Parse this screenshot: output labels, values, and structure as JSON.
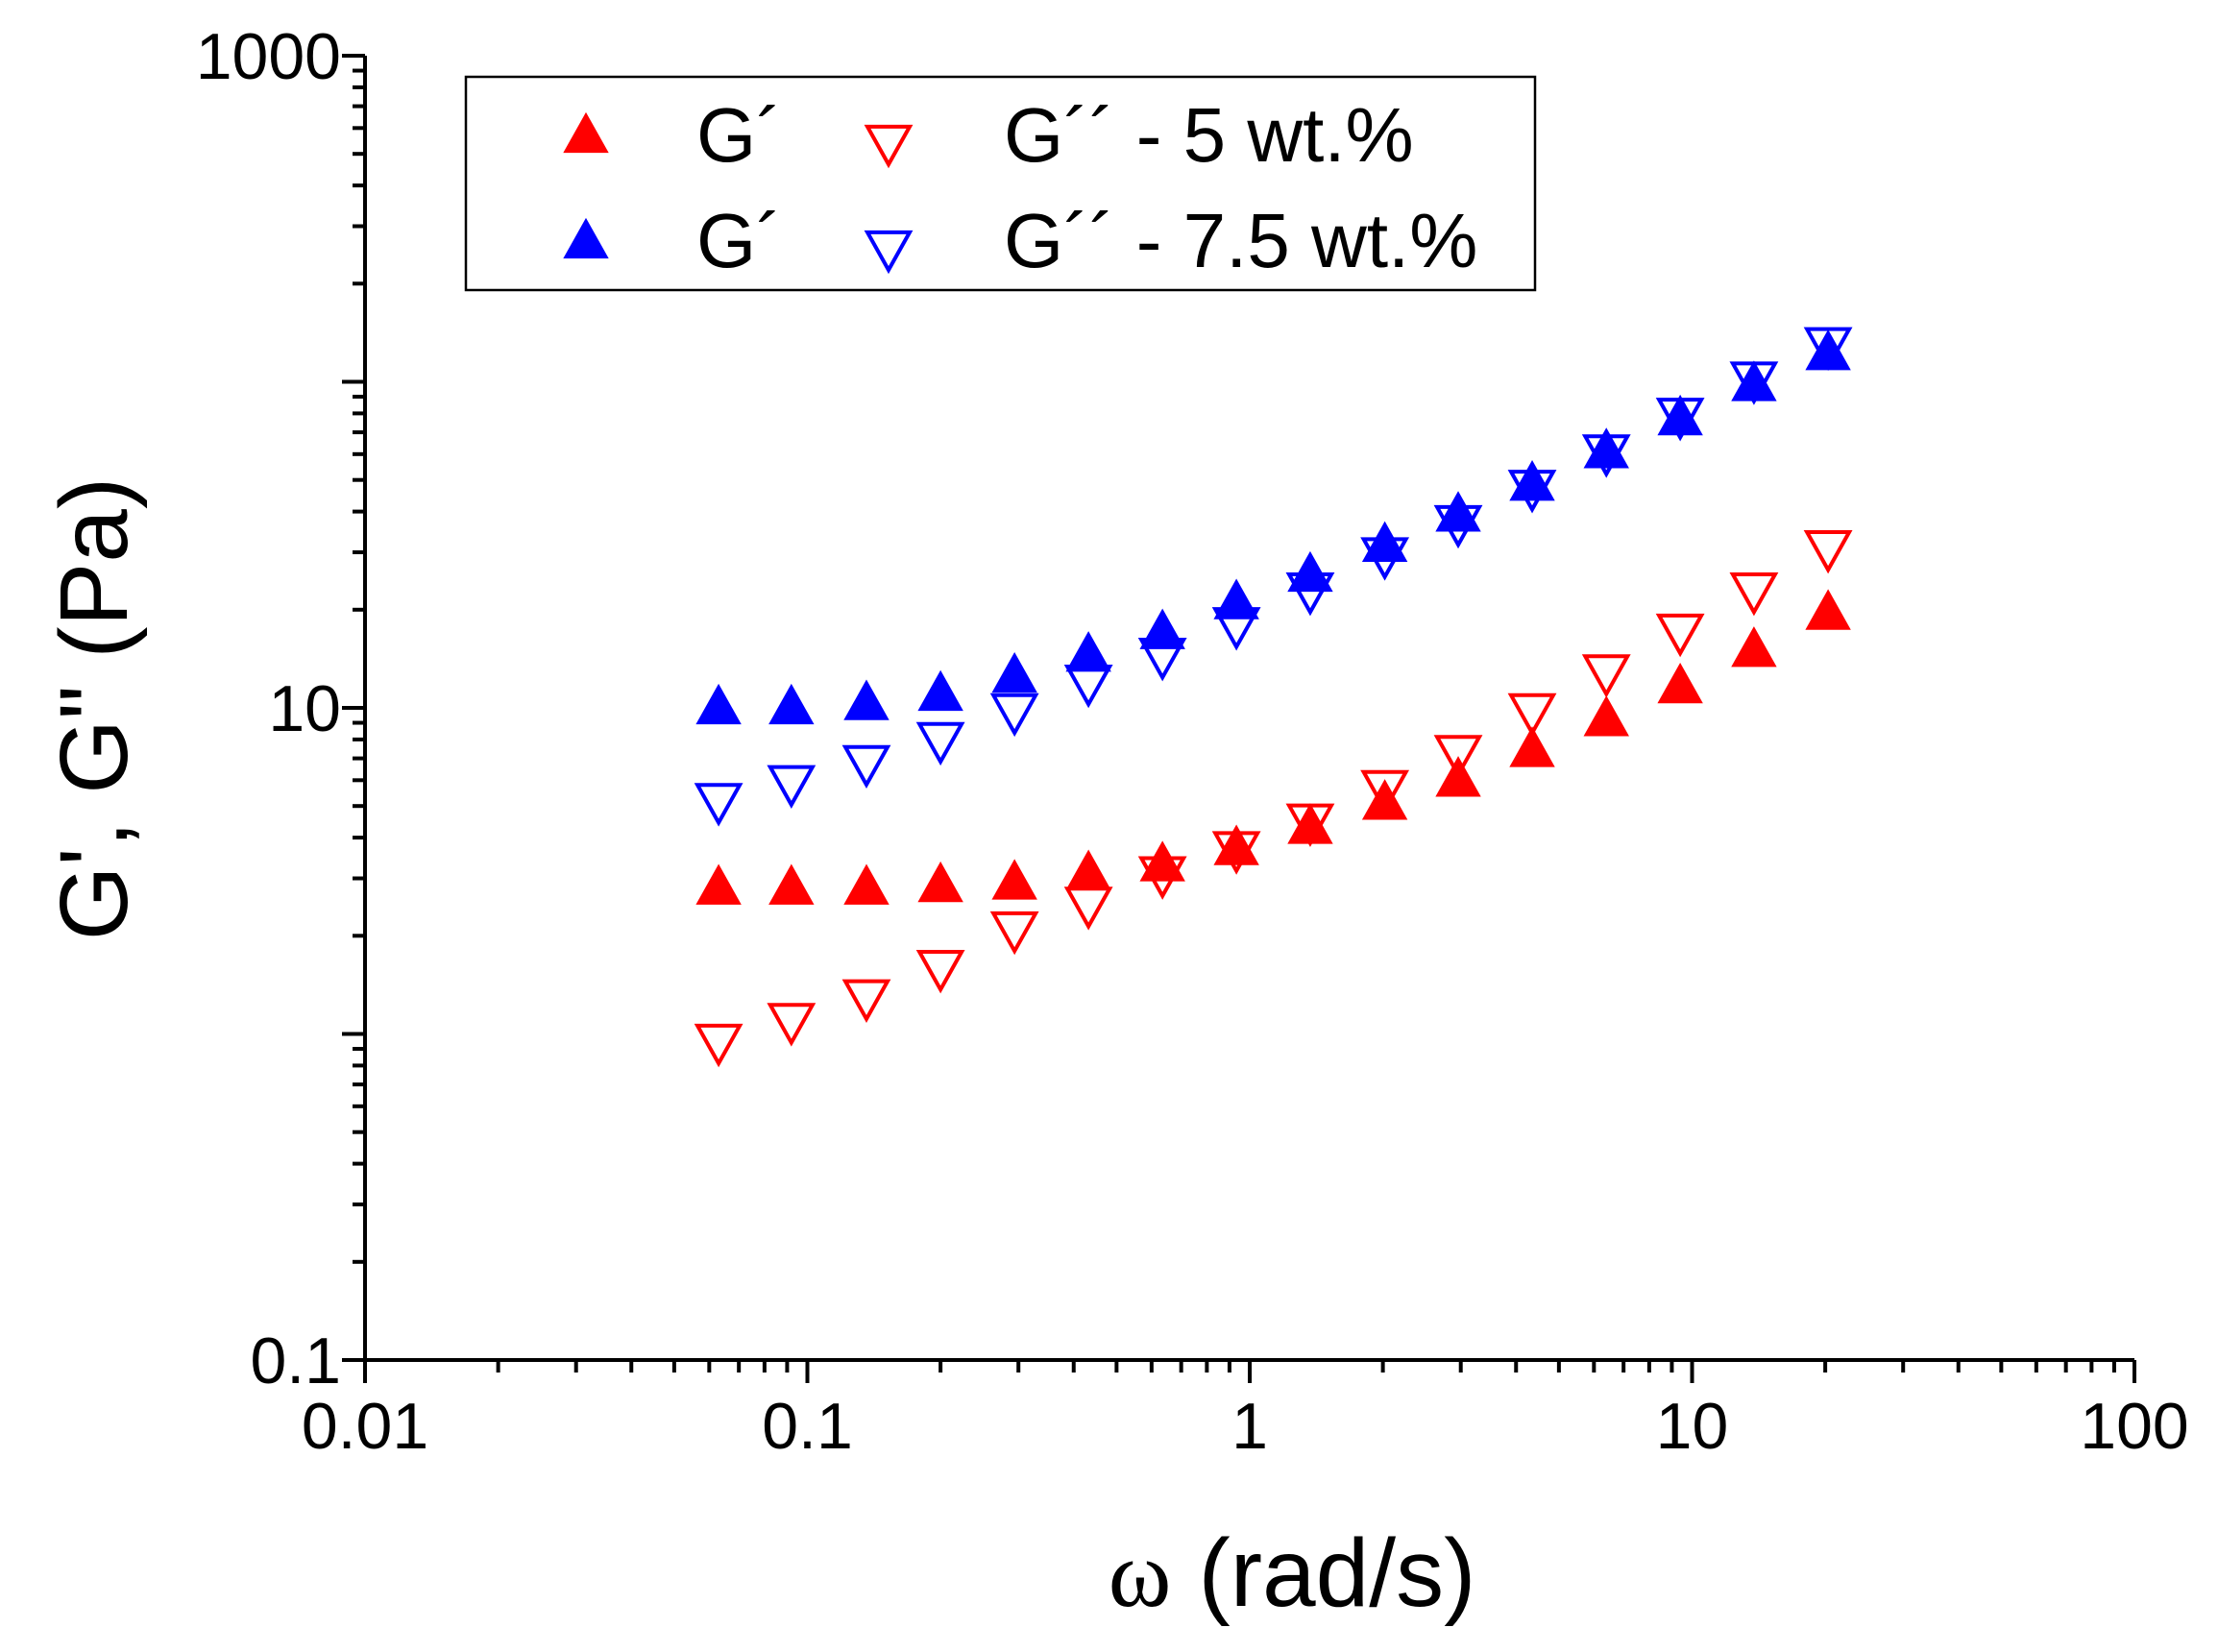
{
  "chart_data": {
    "type": "scatter",
    "title": "",
    "xlabel_symbol": "ω",
    "xlabel_unit": "(rad/s)",
    "ylabel": "G', G\" (Pa)",
    "xscale": "log",
    "yscale": "log",
    "xlim": [
      0.01,
      100
    ],
    "ylim": [
      0.1,
      1000
    ],
    "x_tick_labels": [
      "0.01",
      "0.1",
      "1",
      "10",
      "100"
    ],
    "y_tick_labels": [
      "0.1",
      "10",
      "1000"
    ],
    "legend_position": "top-left",
    "legend": [
      {
        "label": "G´",
        "suffix": "",
        "color": "#ff0000",
        "marker": "triangle-up-filled"
      },
      {
        "label": "G´´",
        "suffix": " - 5 wt.%",
        "color": "#ff0000",
        "marker": "triangle-down-open"
      },
      {
        "label": "G´",
        "suffix": "",
        "color": "#0000ff",
        "marker": "triangle-up-filled"
      },
      {
        "label": "G´´",
        "suffix": " - 7.5 wt.%",
        "color": "#0000ff",
        "marker": "triangle-down-open"
      }
    ],
    "x": [
      0.063,
      0.092,
      0.136,
      0.2,
      0.294,
      0.432,
      0.635,
      0.933,
      1.37,
      2.02,
      2.96,
      4.35,
      6.4,
      9.4,
      13.8,
      20.3
    ],
    "series": [
      {
        "name": "G´ - 5 wt.%",
        "color": "#ff0000",
        "marker": "triangle-up-filled",
        "values": [
          2.8,
          2.8,
          2.8,
          2.85,
          2.9,
          3.1,
          3.3,
          3.7,
          4.3,
          5.1,
          6.0,
          7.4,
          9.2,
          11.6,
          15.0,
          19.5
        ]
      },
      {
        "name": "G´´ - 5 wt.%",
        "color": "#ff0000",
        "marker": "triangle-down-open",
        "values": [
          0.95,
          1.1,
          1.3,
          1.6,
          2.1,
          2.5,
          3.1,
          3.7,
          4.5,
          5.7,
          7.3,
          9.8,
          12.9,
          17.2,
          23.0,
          31.0
        ]
      },
      {
        "name": "G´ - 7.5 wt.%",
        "color": "#0000ff",
        "marker": "triangle-up-filled",
        "values": [
          10.0,
          10.0,
          10.3,
          11.0,
          12.5,
          14.5,
          17.0,
          21.0,
          25.5,
          31.5,
          39.0,
          48.5,
          61.0,
          77.0,
          98.0,
          122.0
        ]
      },
      {
        "name": "G´´ - 7.5 wt.%",
        "color": "#0000ff",
        "marker": "triangle-down-open",
        "values": [
          5.2,
          5.9,
          6.8,
          8.0,
          9.8,
          12.0,
          14.5,
          18.0,
          23.0,
          29.5,
          37.0,
          47.5,
          61.0,
          79.0,
          102.0,
          130.0
        ]
      }
    ]
  }
}
